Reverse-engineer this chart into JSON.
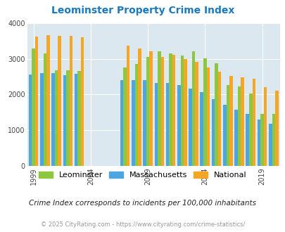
{
  "title": "Leominster Property Crime Index",
  "subtitle": "Crime Index corresponds to incidents per 100,000 inhabitants",
  "footer": "© 2025 CityRating.com - https://www.cityrating.com/crime-statistics/",
  "years": [
    1999,
    2000,
    2001,
    2002,
    2003,
    2007,
    2008,
    2009,
    2010,
    2011,
    2012,
    2013,
    2014,
    2015,
    2016,
    2017,
    2018,
    2019,
    2020
  ],
  "leominster": [
    3300,
    3150,
    2680,
    2680,
    2650,
    2760,
    2850,
    3050,
    3220,
    3150,
    3100,
    3220,
    3020,
    2880,
    2270,
    2230,
    2020,
    1460,
    1460
  ],
  "massachusetts": [
    2560,
    2600,
    2600,
    2550,
    2580,
    2400,
    2400,
    2400,
    2320,
    2330,
    2270,
    2160,
    2060,
    1870,
    1720,
    1570,
    1460,
    1300,
    1190
  ],
  "national": [
    3620,
    3670,
    3650,
    3640,
    3600,
    3360,
    3290,
    3210,
    3060,
    3110,
    2990,
    2920,
    2760,
    2640,
    2520,
    2490,
    2440,
    2200,
    2110
  ],
  "bar_width": 0.28,
  "ylim": [
    0,
    4000
  ],
  "yticks": [
    0,
    1000,
    2000,
    3000,
    4000
  ],
  "color_leominster": "#8dc63f",
  "color_massachusetts": "#4da6e0",
  "color_national": "#f5a623",
  "background_color": "#dce8ef",
  "title_color": "#1a7abf",
  "subtitle_color": "#222222",
  "footer_color": "#999999",
  "grid_color": "#ffffff",
  "xtick_labels": [
    "1999",
    "2004",
    "2009",
    "2014",
    "2019"
  ]
}
